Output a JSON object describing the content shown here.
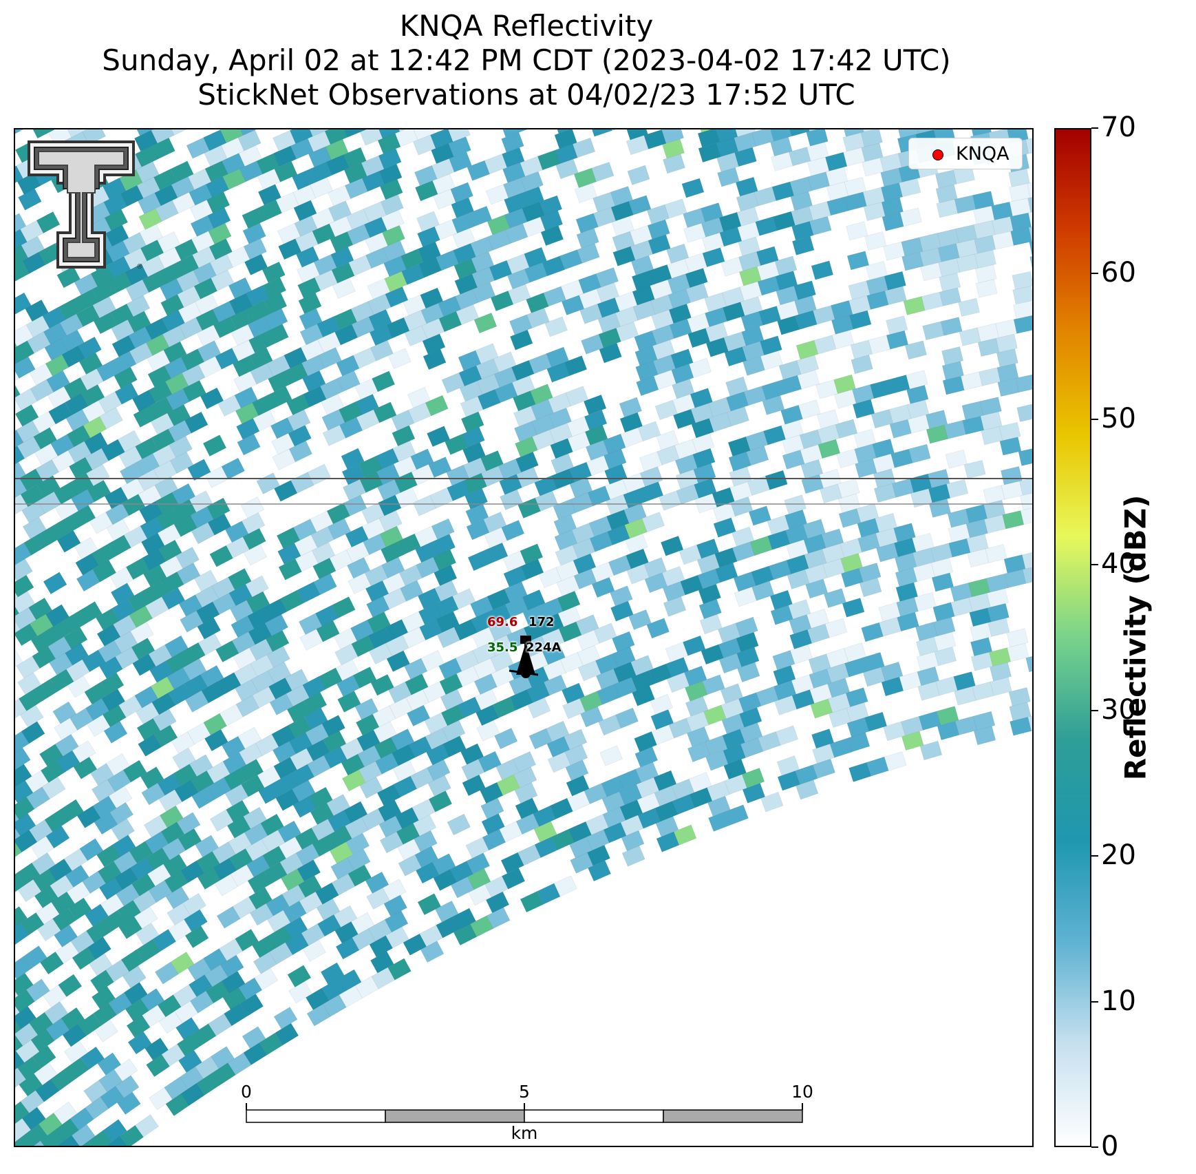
{
  "title": {
    "line1": "KNQA Reflectivity",
    "line2": "Sunday, April 02 at 12:42 PM CDT (2023-04-02 17:42 UTC)",
    "line3": "StickNet Observations at 04/02/23 17:52 UTC"
  },
  "legend": {
    "label": "KNQA",
    "marker_color": "#ff0000"
  },
  "colorbar": {
    "label": "Reflectivity (dBZ)",
    "min": 0,
    "max": 70,
    "ticks": [
      "0",
      "10",
      "20",
      "30",
      "40",
      "50",
      "60",
      "70"
    ],
    "colors": [
      "#ffffff",
      "#c6e0ef",
      "#5fb2d2",
      "#1f97b0",
      "#2e9e97",
      "#78d38b",
      "#e8f75a",
      "#e9c500",
      "#e28500",
      "#cf3c00",
      "#a30000"
    ]
  },
  "station": {
    "id": "224A",
    "temperature": "69.6",
    "dewpoint": "35.5",
    "pressure": "172",
    "temperature_color": "#b00000",
    "dewpoint_color": "#006600"
  },
  "scalebar": {
    "ticks": [
      "0",
      "5",
      "10"
    ],
    "unit": "km"
  },
  "logo": {
    "name": "Texas Tech Double T"
  }
}
